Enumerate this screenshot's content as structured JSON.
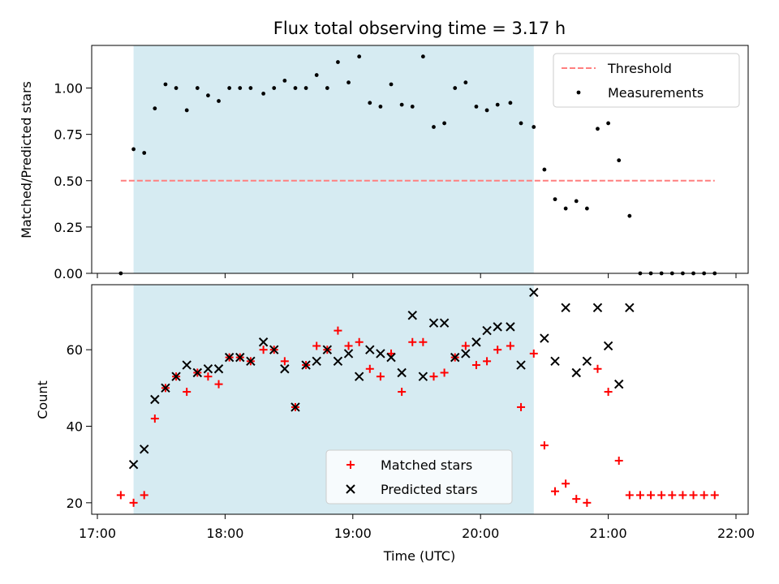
{
  "chart_data": [
    {
      "type": "scatter",
      "title": "Flux total observing time = 3.17 h",
      "xlabel": "",
      "ylabel": "Matched/Predicted stars",
      "xlim": [
        "17:00",
        "22:05"
      ],
      "ylim": [
        0.0,
        1.23
      ],
      "yticks": [
        "0.00",
        "0.25",
        "0.50",
        "0.75",
        "1.00"
      ],
      "shaded_region": {
        "start": "17:17",
        "end": "20:25",
        "color": "#add8e6"
      },
      "threshold": {
        "name": "Threshold",
        "value": 0.5,
        "x_start": "17:11",
        "x_end": "21:50",
        "color": "#ff7f7f"
      },
      "legend": {
        "position": "top-right",
        "entries": [
          "Threshold",
          "Measurements"
        ]
      },
      "series": [
        {
          "name": "Measurements",
          "color": "#000000",
          "marker": "dot",
          "x": [
            "17:11",
            "17:17",
            "17:22",
            "17:27",
            "17:32",
            "17:37",
            "17:42",
            "17:47",
            "17:52",
            "17:57",
            "18:02",
            "18:07",
            "18:12",
            "18:18",
            "18:23",
            "18:28",
            "18:33",
            "18:38",
            "18:43",
            "18:48",
            "18:53",
            "18:58",
            "19:03",
            "19:08",
            "19:13",
            "19:18",
            "19:23",
            "19:28",
            "19:33",
            "19:38",
            "19:43",
            "19:48",
            "19:53",
            "19:58",
            "20:03",
            "20:08",
            "20:14",
            "20:19",
            "20:25",
            "20:30",
            "20:35",
            "20:40",
            "20:45",
            "20:50",
            "20:55",
            "21:00",
            "21:05",
            "21:10",
            "21:15",
            "21:20",
            "21:25",
            "21:30",
            "21:35",
            "21:40",
            "21:45",
            "21:50"
          ],
          "y": [
            0.0,
            0.67,
            0.65,
            0.89,
            1.02,
            1.0,
            0.88,
            1.0,
            0.96,
            0.93,
            1.0,
            1.0,
            1.0,
            0.97,
            1.0,
            1.04,
            1.0,
            1.0,
            1.07,
            1.0,
            1.14,
            1.03,
            1.17,
            0.92,
            0.9,
            1.02,
            0.91,
            0.9,
            1.17,
            0.79,
            0.81,
            1.0,
            1.03,
            0.9,
            0.88,
            0.91,
            0.92,
            0.81,
            0.79,
            0.56,
            0.4,
            0.35,
            0.39,
            0.35,
            0.78,
            0.81,
            0.61,
            0.31,
            0.0,
            0.0,
            0.0,
            0.0,
            0.0,
            0.0,
            0.0,
            0.0
          ]
        }
      ]
    },
    {
      "type": "scatter",
      "title": "",
      "xlabel": "Time (UTC)",
      "ylabel": "Count",
      "xlim": [
        "17:00",
        "22:05"
      ],
      "ylim": [
        17,
        77
      ],
      "yticks": [
        "20",
        "40",
        "60"
      ],
      "xticks": [
        "17:00",
        "18:00",
        "19:00",
        "20:00",
        "21:00",
        "22:00"
      ],
      "shaded_region": {
        "start": "17:17",
        "end": "20:25",
        "color": "#add8e6"
      },
      "legend": {
        "position": "bottom-center",
        "entries": [
          "Matched stars",
          "Predicted stars"
        ]
      },
      "series": [
        {
          "name": "Matched stars",
          "color": "#ff0000",
          "marker": "plus",
          "x": [
            "17:11",
            "17:17",
            "17:22",
            "17:27",
            "17:32",
            "17:37",
            "17:42",
            "17:47",
            "17:52",
            "17:57",
            "18:02",
            "18:07",
            "18:12",
            "18:18",
            "18:23",
            "18:28",
            "18:33",
            "18:38",
            "18:43",
            "18:48",
            "18:53",
            "18:58",
            "19:03",
            "19:08",
            "19:13",
            "19:18",
            "19:23",
            "19:28",
            "19:33",
            "19:38",
            "19:43",
            "19:48",
            "19:53",
            "19:58",
            "20:03",
            "20:08",
            "20:14",
            "20:19",
            "20:25",
            "20:30",
            "20:35",
            "20:40",
            "20:45",
            "20:50",
            "20:55",
            "21:00",
            "21:05",
            "21:10",
            "21:15",
            "21:20",
            "21:25",
            "21:30",
            "21:35",
            "21:40",
            "21:45",
            "21:50"
          ],
          "y": [
            22,
            20,
            22,
            42,
            50,
            53,
            49,
            54,
            53,
            51,
            58,
            58,
            57,
            60,
            60,
            57,
            45,
            56,
            61,
            60,
            65,
            61,
            62,
            55,
            53,
            59,
            49,
            62,
            62,
            53,
            54,
            58,
            61,
            56,
            57,
            60,
            61,
            45,
            59,
            35,
            23,
            25,
            21,
            20,
            55,
            49,
            31,
            22,
            22,
            22,
            22,
            22,
            22,
            22,
            22,
            22
          ]
        },
        {
          "name": "Predicted stars",
          "color": "#000000",
          "marker": "x",
          "x": [
            "17:17",
            "17:22",
            "17:27",
            "17:32",
            "17:37",
            "17:42",
            "17:47",
            "17:52",
            "17:57",
            "18:02",
            "18:07",
            "18:12",
            "18:18",
            "18:23",
            "18:28",
            "18:33",
            "18:38",
            "18:43",
            "18:48",
            "18:53",
            "18:58",
            "19:03",
            "19:08",
            "19:13",
            "19:18",
            "19:23",
            "19:28",
            "19:33",
            "19:38",
            "19:43",
            "19:48",
            "19:53",
            "19:58",
            "20:03",
            "20:08",
            "20:14",
            "20:19",
            "20:25",
            "20:30",
            "20:35",
            "20:40",
            "20:45",
            "20:50",
            "20:55",
            "21:00",
            "21:05",
            "21:10"
          ],
          "y": [
            30,
            34,
            47,
            50,
            53,
            56,
            54,
            55,
            55,
            58,
            58,
            57,
            62,
            60,
            55,
            45,
            56,
            57,
            60,
            57,
            59,
            53,
            60,
            59,
            58,
            54,
            69,
            53,
            67,
            67,
            58,
            59,
            62,
            65,
            66,
            66,
            56,
            75,
            63,
            57,
            71,
            54,
            57,
            71,
            61,
            51,
            71
          ]
        }
      ]
    }
  ]
}
